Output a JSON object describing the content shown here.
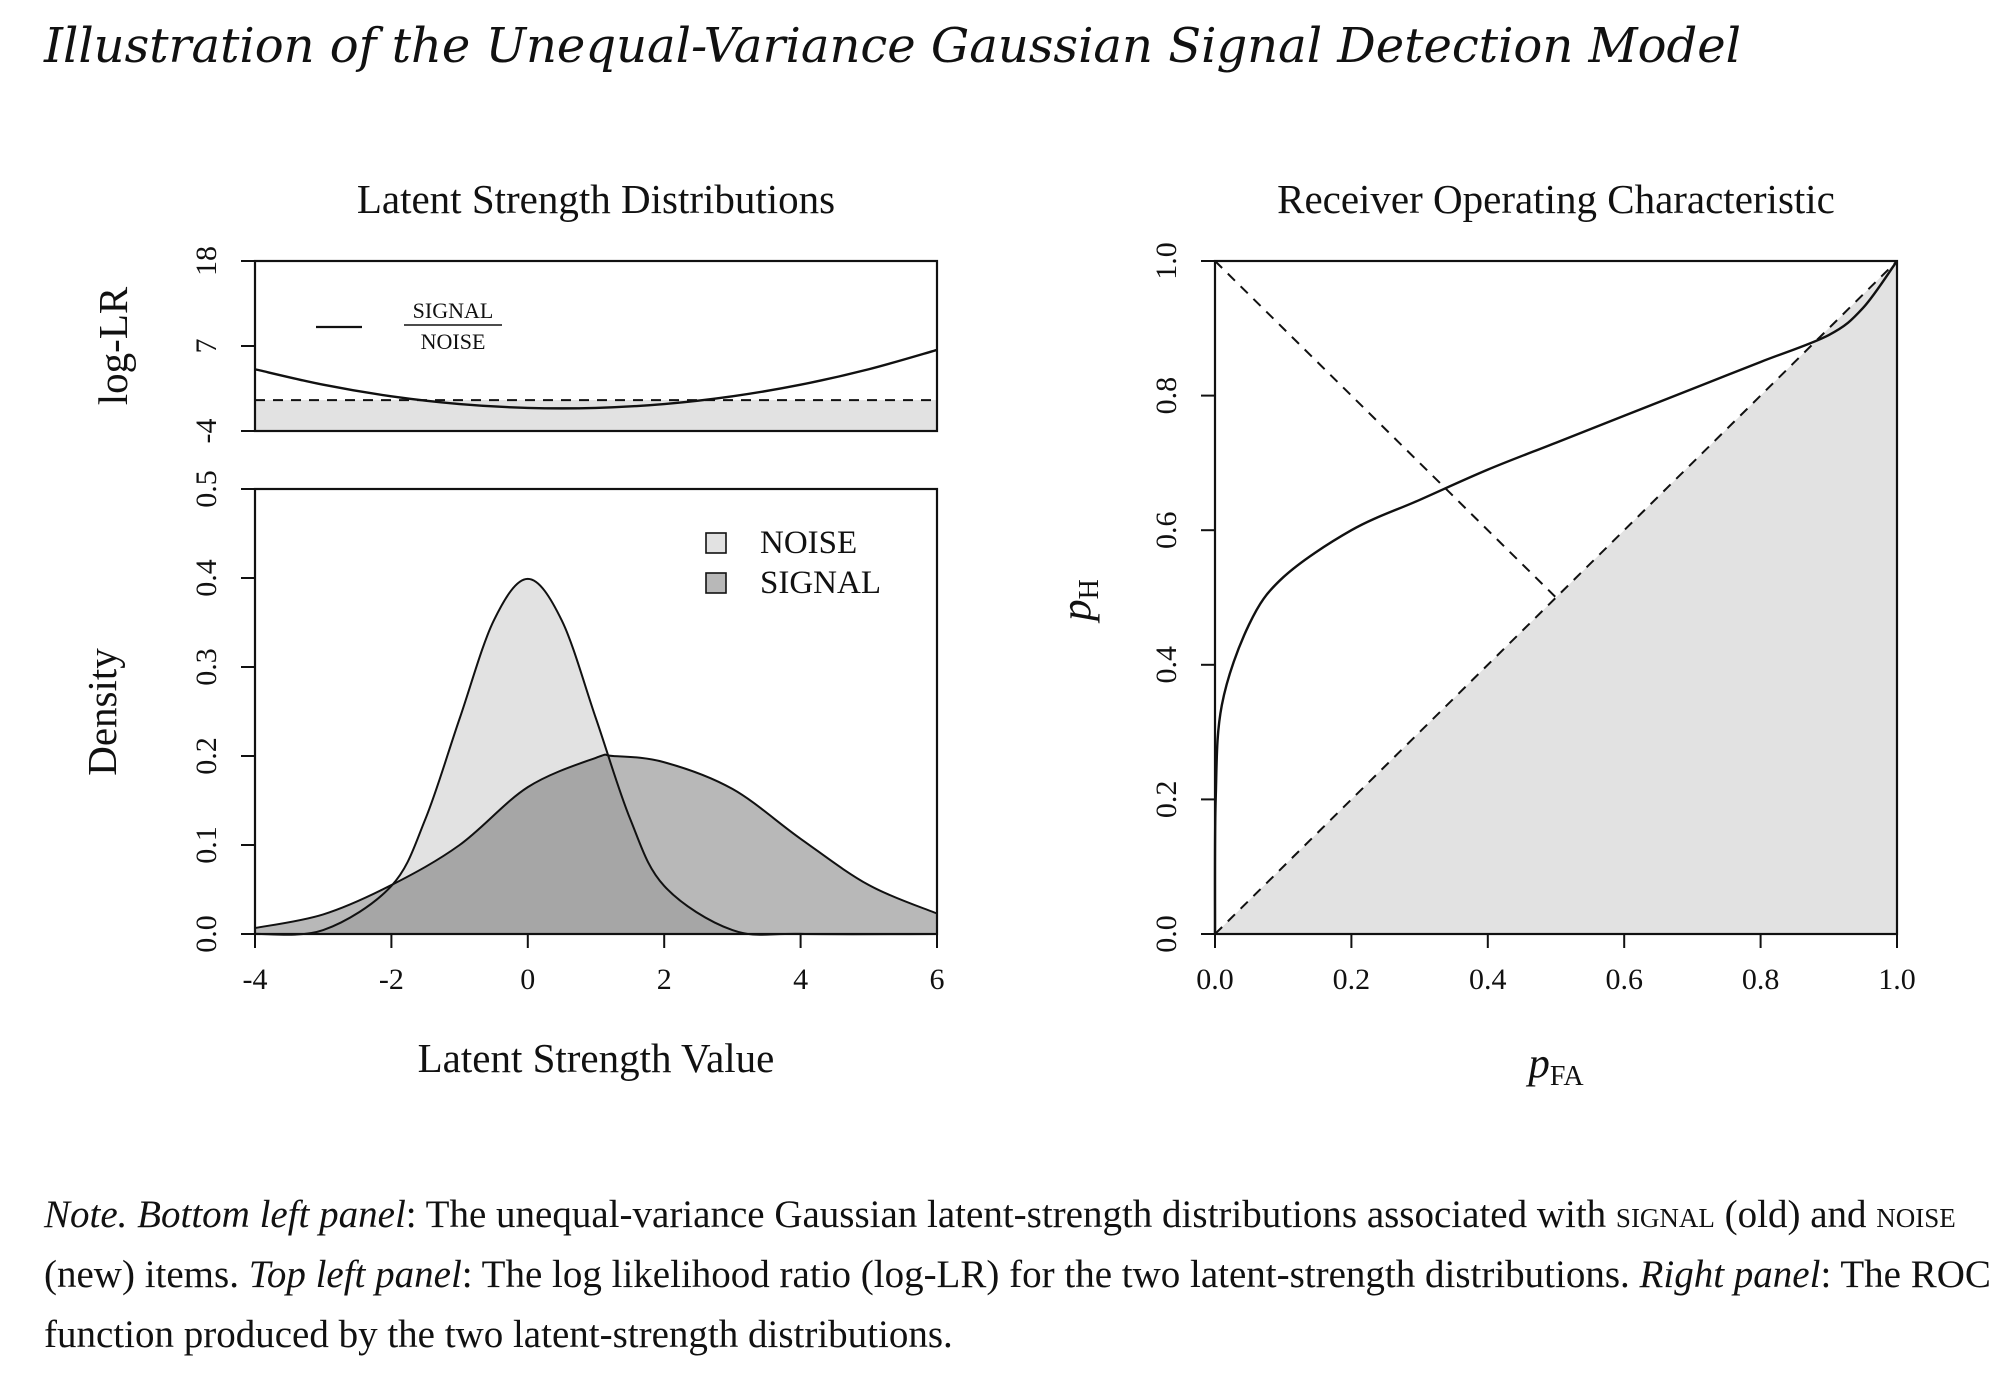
{
  "figure_title": "Illustration of the Unequal-Variance Gaussian Signal Detection Model",
  "chart_data": [
    {
      "panel": "top-left",
      "type": "line",
      "title": "Latent Strength Distributions",
      "ylabel": "log-LR",
      "xlim": [
        -4,
        6
      ],
      "ylim": [
        -4,
        18
      ],
      "yticks": [
        "-4",
        "7",
        "18"
      ],
      "reference_line_y": 0,
      "shaded_below_reference": true,
      "legend": {
        "ratio_numerator": "SIGNAL",
        "ratio_denominator": "NOISE",
        "placement": "top-left"
      },
      "series": [
        {
          "x": [
            -4,
            -3,
            -2,
            -1,
            0,
            1,
            2,
            3,
            4,
            5,
            6
          ],
          "values": [
            3.99,
            1.99,
            0.49,
            -0.51,
            -1.01,
            -1.01,
            -0.51,
            0.49,
            1.99,
            3.99,
            6.49
          ]
        }
      ]
    },
    {
      "panel": "bottom-left",
      "type": "area",
      "xlabel": "Latent Strength Value",
      "ylabel": "Density",
      "xlim": [
        -4,
        6
      ],
      "ylim": [
        0,
        0.5
      ],
      "xticks": [
        "-4",
        "-2",
        "0",
        "2",
        "4",
        "6"
      ],
      "yticks": [
        "0.0",
        "0.1",
        "0.2",
        "0.3",
        "0.4",
        "0.5"
      ],
      "legend": {
        "placement": "top-right"
      },
      "series": [
        {
          "name": "NOISE",
          "color": "#e2e2e2",
          "x": [
            -4,
            -3,
            -2,
            -1.5,
            -1,
            -0.5,
            0,
            0.5,
            1,
            1.5,
            2,
            3,
            4,
            6
          ],
          "values": [
            0.0001,
            0.0044,
            0.054,
            0.1295,
            0.242,
            0.352,
            0.399,
            0.352,
            0.242,
            0.1295,
            0.054,
            0.0044,
            0.0001,
            0.0
          ]
        },
        {
          "name": "SIGNAL",
          "color": "#b8b8b8",
          "x": [
            -4,
            -3,
            -2,
            -1,
            0,
            1,
            1.25,
            2,
            3,
            4,
            5,
            6
          ],
          "values": [
            0.0067,
            0.022,
            0.055,
            0.1,
            0.165,
            0.198,
            0.2,
            0.193,
            0.163,
            0.107,
            0.055,
            0.023
          ]
        }
      ]
    },
    {
      "panel": "right",
      "type": "line",
      "title": "Receiver Operating Characteristic",
      "xlabel": "pFA",
      "ylabel": "pH",
      "xlim": [
        0,
        1
      ],
      "ylim": [
        0,
        1
      ],
      "xticks": [
        "0.0",
        "0.2",
        "0.4",
        "0.6",
        "0.8",
        "1.0"
      ],
      "yticks": [
        "0.0",
        "0.2",
        "0.4",
        "0.6",
        "0.8",
        "1.0"
      ],
      "reference_lines": [
        "chance diagonal (0,0)-(1,1)",
        "minor diagonal (0,1)-(0.5,0.5)"
      ],
      "shaded_below_chance_diagonal": true,
      "series": [
        {
          "x": [
            0.0,
            0.001,
            0.01,
            0.05,
            0.1,
            0.2,
            0.3,
            0.4,
            0.5,
            0.6,
            0.7,
            0.8,
            0.9,
            0.95,
            1.0
          ],
          "values": [
            0.0,
            0.2,
            0.34,
            0.46,
            0.53,
            0.6,
            0.645,
            0.69,
            0.73,
            0.77,
            0.81,
            0.85,
            0.89,
            0.93,
            1.0
          ]
        }
      ]
    }
  ],
  "labels": {
    "ylabel_main": "p",
    "ylabel_sub": "H",
    "xlabel_main": "p",
    "xlabel_sub": "FA"
  },
  "note": {
    "note_label": "Note.",
    "bottom_label": "Bottom left panel",
    "text1": ": The unequal-variance Gaussian latent-strength distributions associated with ",
    "signal_word": "signal",
    "text2": " (old) and ",
    "noise_word": "noise",
    "text3": " (new) items. ",
    "top_label": "Top left panel",
    "text4": ": The log likelihood ratio (log-LR) for the two latent-strength distributions. ",
    "right_label": "Right panel",
    "text5": ": The ROC function produced by the two latent-strength distributions."
  }
}
